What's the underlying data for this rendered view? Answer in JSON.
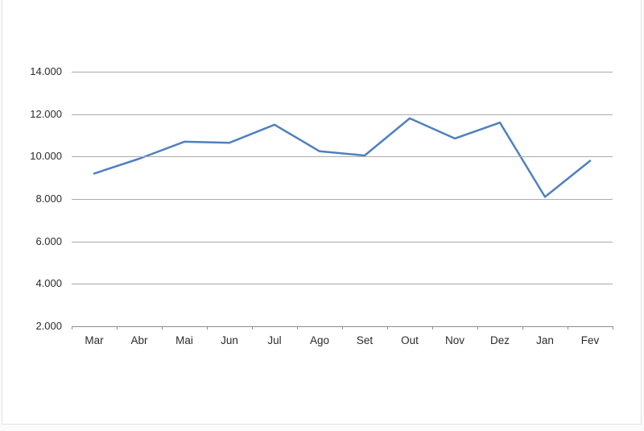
{
  "page": {
    "surface_color": "#ffffff",
    "outer_background": "#fbfbfb",
    "edge_color": "#e3e3e3"
  },
  "chart_data": {
    "type": "line",
    "title": "",
    "xlabel": "",
    "ylabel": "",
    "categories": [
      "Mar",
      "Abr",
      "Mai",
      "Jun",
      "Jul",
      "Ago",
      "Set",
      "Out",
      "Nov",
      "Dez",
      "Jan",
      "Fev"
    ],
    "values": [
      9200,
      9900,
      10700,
      10650,
      11500,
      10250,
      10050,
      11800,
      10850,
      11600,
      8100,
      9800
    ],
    "ylim": [
      2000,
      14000
    ],
    "ytick_step": 2000,
    "ytick_labels": [
      "2.000",
      "4.000",
      "6.000",
      "8.000",
      "10.000",
      "12.000",
      "14.000"
    ],
    "grid": true,
    "legend": false,
    "line_color": "#4F81BD",
    "line_width": 2.5,
    "gridline_color": "#ababab",
    "axis_color": "#8c8c8c",
    "tick_color": "#8c8c8c",
    "label_color": "#2b2b2b"
  }
}
